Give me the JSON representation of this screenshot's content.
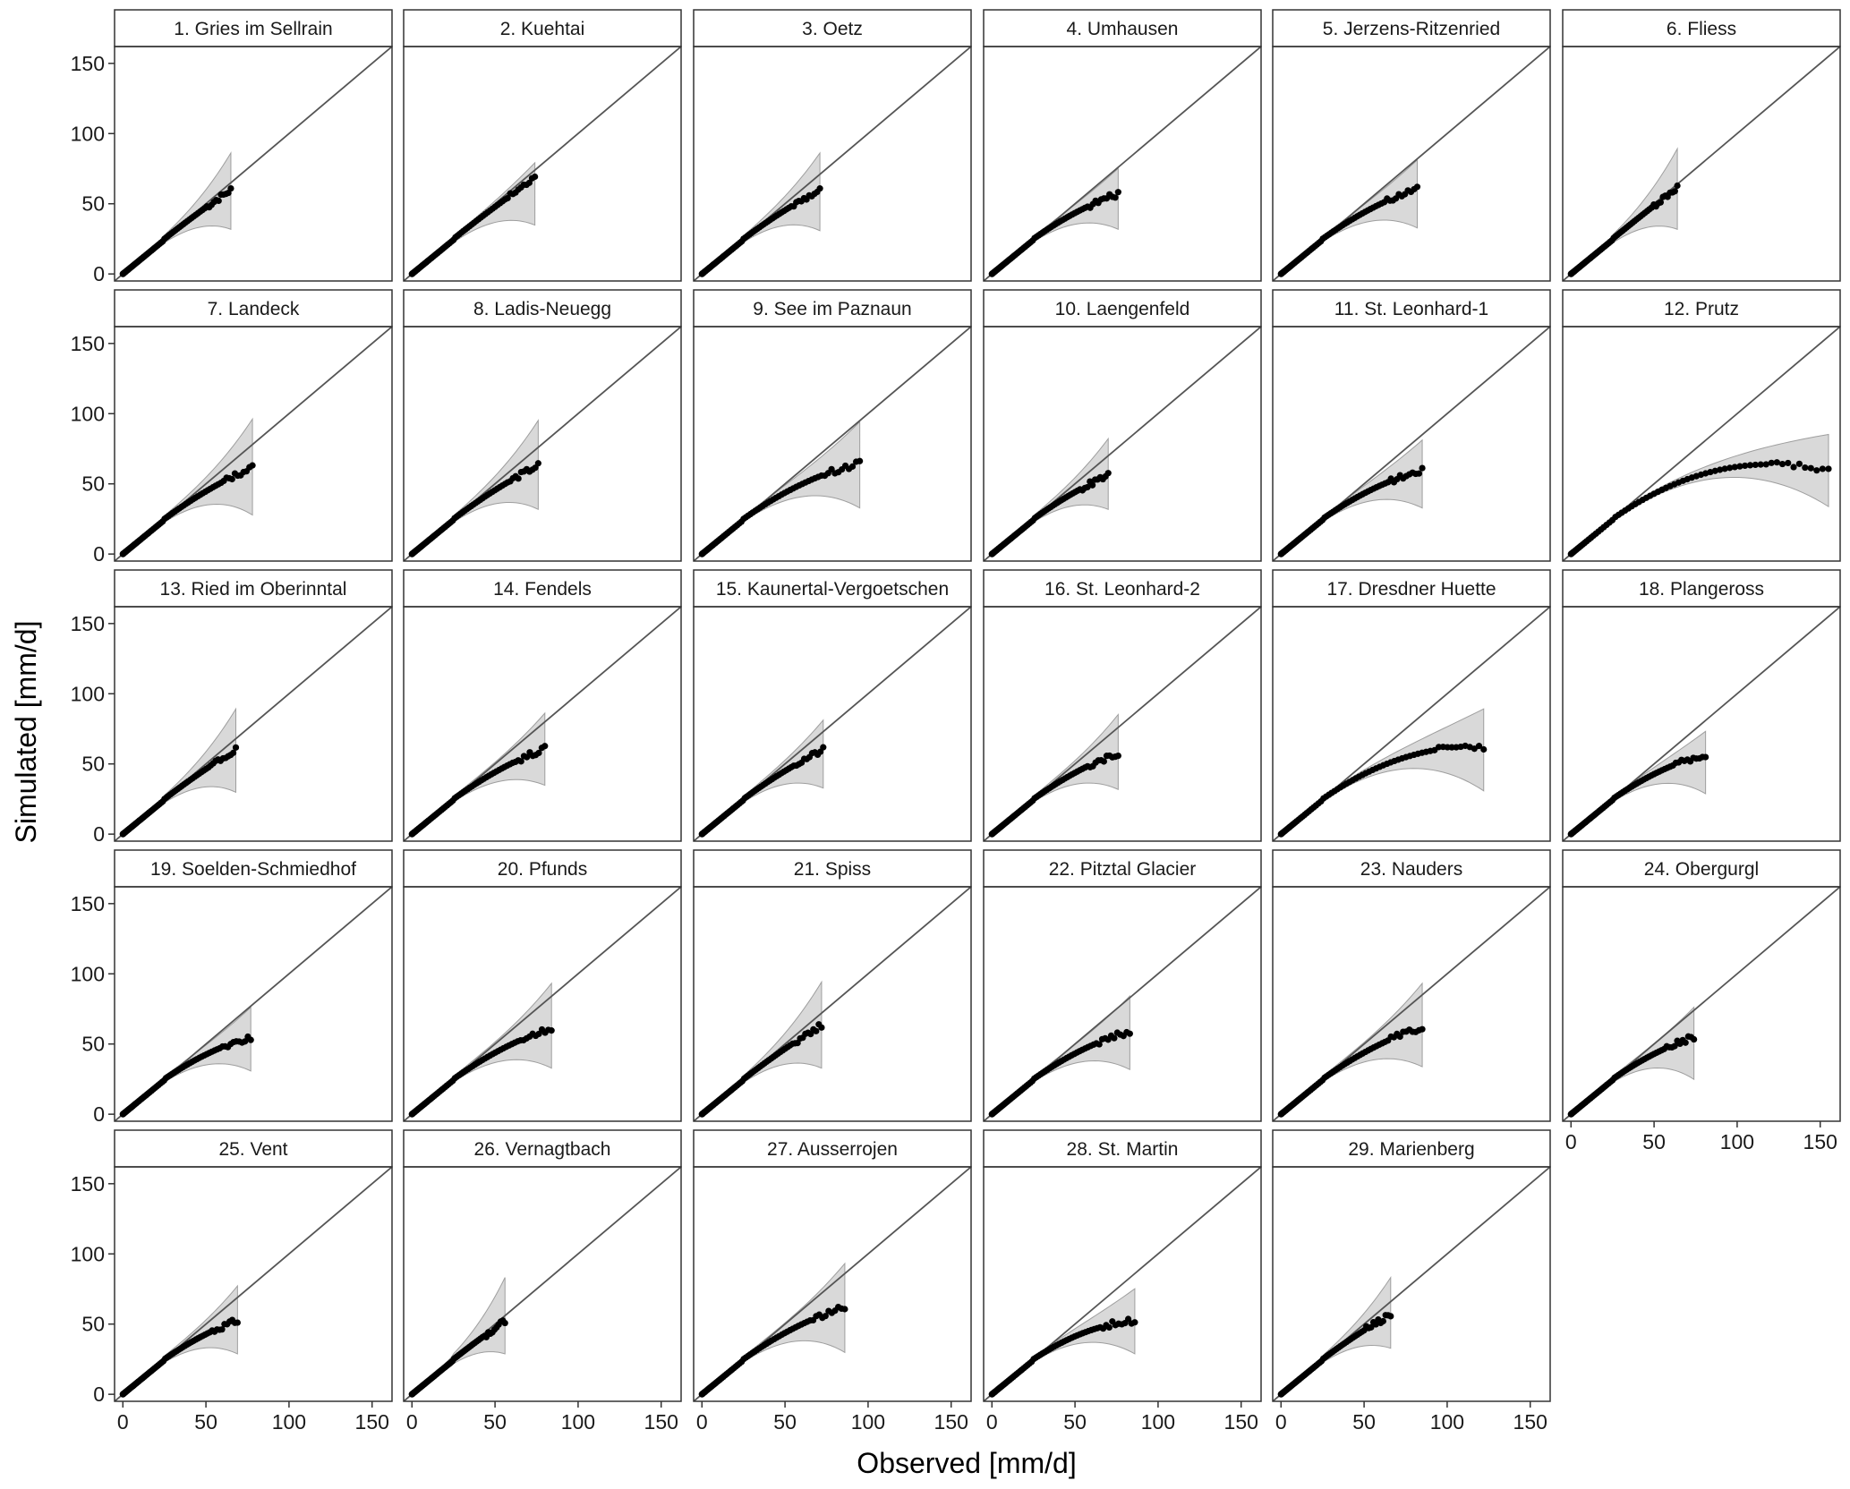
{
  "figure": {
    "xlabel": "Observed [mm/d]",
    "ylabel": "Simulated [mm/d]"
  },
  "chart_data": {
    "type": "scatter",
    "layout": "facet grid 6 columns x 5 rows, 29 panels",
    "xlim": [
      -5,
      162
    ],
    "ylim": [
      -5,
      162
    ],
    "xticks": [
      0,
      50,
      100,
      150
    ],
    "yticks": [
      0,
      50,
      100,
      150
    ],
    "reference_line": "1:1 diagonal",
    "grid": false,
    "legend": "none",
    "colors": {
      "points": "#000000",
      "band": "#d9d9d9",
      "band_edge": "#9e9e9e",
      "line": "#555555",
      "frame": "#333333",
      "strip": "#ffffff"
    },
    "panels": [
      {
        "title": "1. Gries im Sellrain",
        "obs_max": 65,
        "end_ratio": 0.92,
        "band_top": 85,
        "band_bottom": 33
      },
      {
        "title": "2. Kuehtai",
        "obs_max": 74,
        "end_ratio": 0.92,
        "band_top": 78,
        "band_bottom": 36
      },
      {
        "title": "3. Oetz",
        "obs_max": 71,
        "end_ratio": 0.84,
        "band_top": 85,
        "band_bottom": 32
      },
      {
        "title": "4. Umhausen",
        "obs_max": 76,
        "end_ratio": 0.75,
        "band_top": 74,
        "band_bottom": 33
      },
      {
        "title": "5. Jerzens-Ritzenried",
        "obs_max": 82,
        "end_ratio": 0.74,
        "band_top": 80,
        "band_bottom": 34
      },
      {
        "title": "6. Fliess",
        "obs_max": 64,
        "end_ratio": 0.96,
        "band_top": 88,
        "band_bottom": 33
      },
      {
        "title": "7. Landeck",
        "obs_max": 78,
        "end_ratio": 0.79,
        "band_top": 95,
        "band_bottom": 29
      },
      {
        "title": "8. Ladis-Neuegg",
        "obs_max": 76,
        "end_ratio": 0.83,
        "band_top": 94,
        "band_bottom": 33
      },
      {
        "title": "9. See im Paznaun",
        "obs_max": 95,
        "end_ratio": 0.68,
        "band_top": 93,
        "band_bottom": 34
      },
      {
        "title": "10. Laengenfeld",
        "obs_max": 70,
        "end_ratio": 0.8,
        "band_top": 81,
        "band_bottom": 33
      },
      {
        "title": "11. St. Leonhard-1",
        "obs_max": 85,
        "end_ratio": 0.7,
        "band_top": 80,
        "band_bottom": 34
      },
      {
        "title": "12. Prutz",
        "obs_max": 155,
        "end_ratio": 0.38,
        "band_top": 84,
        "band_bottom": 35
      },
      {
        "title": "13. Ried im Oberinntal",
        "obs_max": 68,
        "end_ratio": 0.88,
        "band_top": 88,
        "band_bottom": 31
      },
      {
        "title": "14. Fendels",
        "obs_max": 80,
        "end_ratio": 0.76,
        "band_top": 85,
        "band_bottom": 36
      },
      {
        "title": "15. Kaunertal-Vergoetschen",
        "obs_max": 73,
        "end_ratio": 0.82,
        "band_top": 80,
        "band_bottom": 34
      },
      {
        "title": "16. St. Leonhard-2",
        "obs_max": 76,
        "end_ratio": 0.76,
        "band_top": 84,
        "band_bottom": 33
      },
      {
        "title": "17. Dresdner Huette",
        "obs_max": 122,
        "end_ratio": 0.51,
        "band_top": 88,
        "band_bottom": 32
      },
      {
        "title": "18. Plangeross",
        "obs_max": 81,
        "end_ratio": 0.7,
        "band_top": 72,
        "band_bottom": 30
      },
      {
        "title": "19. Soelden-Schmiedhof",
        "obs_max": 77,
        "end_ratio": 0.71,
        "band_top": 75,
        "band_bottom": 32
      },
      {
        "title": "20. Pfunds",
        "obs_max": 84,
        "end_ratio": 0.73,
        "band_top": 92,
        "band_bottom": 34
      },
      {
        "title": "21. Spiss",
        "obs_max": 72,
        "end_ratio": 0.88,
        "band_top": 93,
        "band_bottom": 34
      },
      {
        "title": "22. Pitztal Glacier",
        "obs_max": 83,
        "end_ratio": 0.71,
        "band_top": 83,
        "band_bottom": 33
      },
      {
        "title": "23. Nauders",
        "obs_max": 85,
        "end_ratio": 0.73,
        "band_top": 92,
        "band_bottom": 35
      },
      {
        "title": "24. Obergurgl",
        "obs_max": 74,
        "end_ratio": 0.74,
        "band_top": 75,
        "band_bottom": 26
      },
      {
        "title": "25. Vent",
        "obs_max": 69,
        "end_ratio": 0.76,
        "band_top": 76,
        "band_bottom": 30
      },
      {
        "title": "26. Vernagtbach",
        "obs_max": 56,
        "end_ratio": 0.93,
        "band_top": 82,
        "band_bottom": 30
      },
      {
        "title": "27. Ausserrojen",
        "obs_max": 86,
        "end_ratio": 0.72,
        "band_top": 92,
        "band_bottom": 31
      },
      {
        "title": "28. St. Martin",
        "obs_max": 86,
        "end_ratio": 0.61,
        "band_top": 74,
        "band_bottom": 30
      },
      {
        "title": "29. Marienberg",
        "obs_max": 66,
        "end_ratio": 0.86,
        "band_top": 82,
        "band_bottom": 34
      }
    ]
  }
}
